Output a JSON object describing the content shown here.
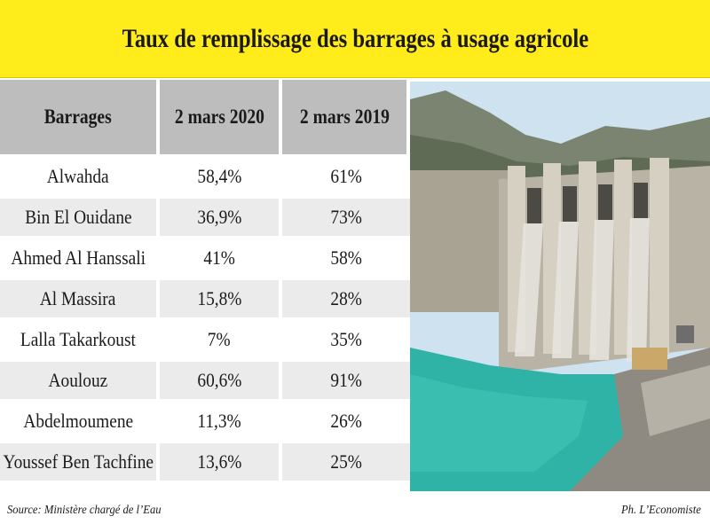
{
  "title": "Taux de remplissage des barrages à usage agricole",
  "chart_data": {
    "type": "table",
    "columns": [
      "Barrages",
      "2 mars 2020",
      "2 mars 2019"
    ],
    "rows": [
      {
        "name": "Alwahda",
        "v2020": "58,4%",
        "v2019": "61%"
      },
      {
        "name": "Bin El Ouidane",
        "v2020": "36,9%",
        "v2019": "73%"
      },
      {
        "name": "Ahmed Al Hanssali",
        "v2020": "41%",
        "v2019": "58%"
      },
      {
        "name": "Al Massira",
        "v2020": "15,8%",
        "v2019": "28%"
      },
      {
        "name": "Lalla Takarkoust",
        "v2020": "7%",
        "v2019": "35%"
      },
      {
        "name": "Aoulouz",
        "v2020": "60,6%",
        "v2019": "91%"
      },
      {
        "name": "Abdelmoumene",
        "v2020": "11,3%",
        "v2019": "26%"
      },
      {
        "name": "Youssef Ben Tachfine",
        "v2020": "13,6%",
        "v2019": "25%"
      }
    ]
  },
  "source": "Source: Ministère chargé de l’Eau",
  "credit": "Ph. L’Economiste",
  "photo": {
    "icon": "dam-photo",
    "colors": {
      "sky": "#cfe2ef",
      "mountain": "#7a8470",
      "concrete": "#b9b3a6",
      "water": "#2fb3a6",
      "road": "#8e8a82"
    }
  }
}
